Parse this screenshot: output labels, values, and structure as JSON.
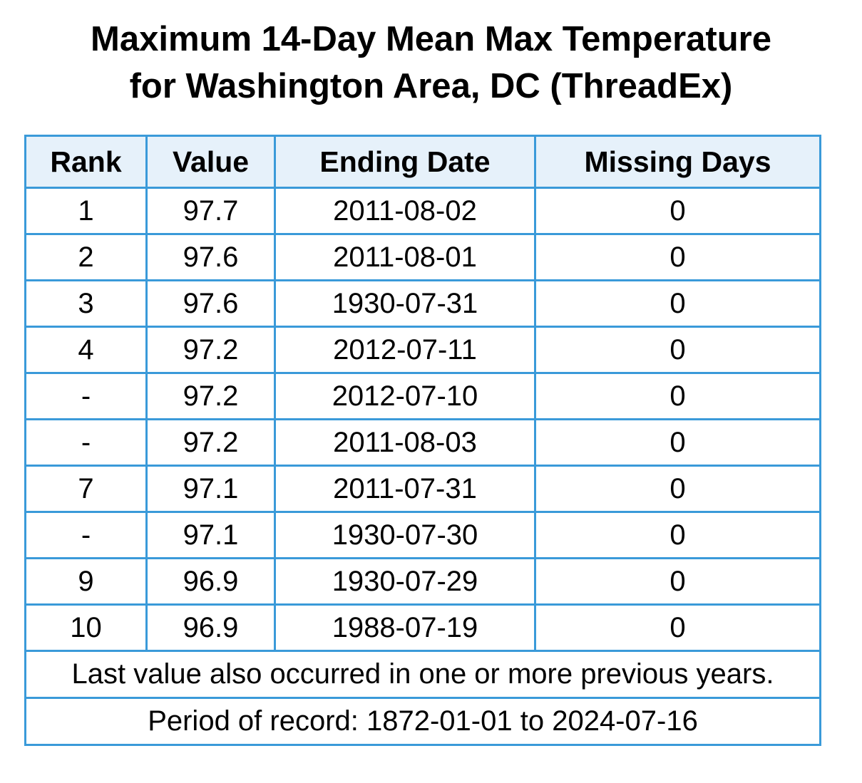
{
  "chart_data": {
    "type": "table",
    "title_lines": [
      "Maximum 14-Day Mean Max Temperature",
      "for Washington Area, DC (ThreadEx)"
    ],
    "columns": [
      "Rank",
      "Value",
      "Ending Date",
      "Missing Days"
    ],
    "rows": [
      {
        "rank": "1",
        "value": "97.7",
        "ending_date": "2011-08-02",
        "missing_days": "0"
      },
      {
        "rank": "2",
        "value": "97.6",
        "ending_date": "2011-08-01",
        "missing_days": "0"
      },
      {
        "rank": "3",
        "value": "97.6",
        "ending_date": "1930-07-31",
        "missing_days": "0"
      },
      {
        "rank": "4",
        "value": "97.2",
        "ending_date": "2012-07-11",
        "missing_days": "0"
      },
      {
        "rank": "-",
        "value": "97.2",
        "ending_date": "2012-07-10",
        "missing_days": "0"
      },
      {
        "rank": "-",
        "value": "97.2",
        "ending_date": "2011-08-03",
        "missing_days": "0"
      },
      {
        "rank": "7",
        "value": "97.1",
        "ending_date": "2011-07-31",
        "missing_days": "0"
      },
      {
        "rank": "-",
        "value": "97.1",
        "ending_date": "1930-07-30",
        "missing_days": "0"
      },
      {
        "rank": "9",
        "value": "96.9",
        "ending_date": "1930-07-29",
        "missing_days": "0"
      },
      {
        "rank": "10",
        "value": "96.9",
        "ending_date": "1988-07-19",
        "missing_days": "0"
      }
    ],
    "notes": [
      "Last value also occurred in one or more previous years.",
      "Period of record: 1872-01-01 to 2024-07-16"
    ]
  },
  "colors": {
    "border": "#3a9ad9",
    "header_background": "#e6f1fa"
  }
}
